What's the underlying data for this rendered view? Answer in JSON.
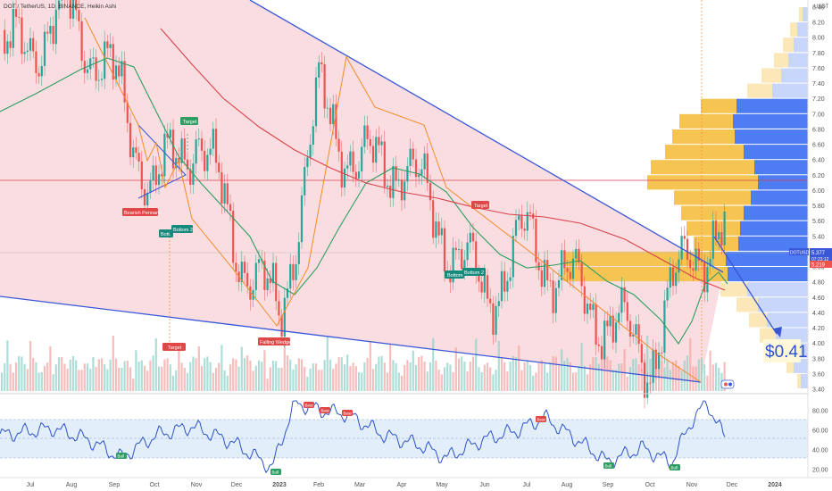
{
  "header": {
    "symbol_text": "DOT / TetherUS, 1D, BINANCE, Heikin Ashi"
  },
  "price_axis": {
    "currency": "USDT",
    "ticks": [
      "8.40",
      "8.20",
      "8.00",
      "7.80",
      "7.60",
      "7.40",
      "7.20",
      "7.00",
      "6.80",
      "6.60",
      "6.40",
      "6.20",
      "6.00",
      "5.80",
      "5.60",
      "5.40",
      "5.20",
      "5.00",
      "4.80",
      "4.60",
      "4.40",
      "4.20",
      "4.00",
      "3.80",
      "3.60",
      "3.40"
    ]
  },
  "rsi_axis": {
    "ticks": [
      "80.00",
      "60.00",
      "40.00",
      "20.00"
    ]
  },
  "time_axis": {
    "ticks": [
      "Jul",
      "Aug",
      "Sep",
      "Oct",
      "Nov",
      "Dec",
      "2023",
      "Feb",
      "Mar",
      "Apr",
      "May",
      "Jun",
      "Jul",
      "Aug",
      "Sep",
      "Oct",
      "Nov",
      "Dec",
      "2024"
    ]
  },
  "badges": {
    "symbol": "DOTUSDT",
    "last_price": "5.377",
    "countdown": "07:23:12",
    "secondary_price": "5.219"
  },
  "colors": {
    "up": "#26a69a",
    "down": "#ef5350",
    "wedge_fill": "#f8d7da",
    "trend_line": "#3a57d8",
    "ma_green": "#2e9e62",
    "ma_red": "#d9424b",
    "pattern_orange": "#f28c28",
    "vp_yellow": "#f6c453",
    "vp_blue": "#4d7cf3",
    "rsi_line": "#2d52c9"
  },
  "annotations": {
    "bearish_pennant": "Bearish Pennant",
    "target_1": "Target",
    "bottom_1": "Bott.",
    "bottom_2": "Bottom 2",
    "target_2": "Target",
    "falling_wedge": "Falling Wedge",
    "target_3": "Target",
    "bottom_3": "Bottom",
    "bottom_4": "Bottom 2",
    "projection": "$0.41"
  },
  "rsi_labels": {
    "bear": "Bear",
    "bull": "Bull"
  },
  "chart_data": {
    "type": "candlestick",
    "title": "DOT / TetherUS, 1D, BINANCE, Heikin Ashi",
    "y_unit": "USDT",
    "ylim": [
      3.4,
      8.5
    ],
    "rsi_ylim": [
      10,
      90
    ],
    "price_path": [
      {
        "x": "Jul",
        "y": 7.7
      },
      {
        "x": "Aug",
        "y": 8.3
      },
      {
        "x": "Sep",
        "y": 7.4
      },
      {
        "x": "Oct",
        "y": 6.0
      },
      {
        "x": "Nov",
        "y": 6.8
      },
      {
        "x": "Dec",
        "y": 5.3
      },
      {
        "x": "2023",
        "y": 4.3
      },
      {
        "x": "Feb",
        "y": 7.2
      },
      {
        "x": "Mar",
        "y": 6.3
      },
      {
        "x": "Apr",
        "y": 6.4
      },
      {
        "x": "May",
        "y": 5.5
      },
      {
        "x": "Jun",
        "y": 4.6
      },
      {
        "x": "Jul",
        "y": 5.4
      },
      {
        "x": "Aug",
        "y": 4.8
      },
      {
        "x": "Sep",
        "y": 4.3
      },
      {
        "x": "Oct",
        "y": 3.8
      },
      {
        "x": "Nov",
        "y": 5.3
      },
      {
        "x": "Dec",
        "y": 5.3
      }
    ],
    "projection_target": 3.85,
    "horizontal_level": 6.25
  }
}
